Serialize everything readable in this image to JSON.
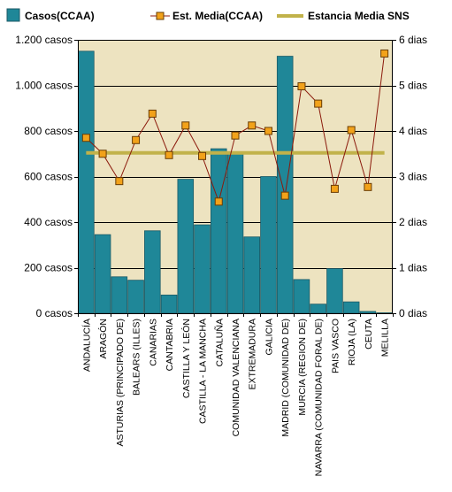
{
  "legend": {
    "casos_label": "Casos(CCAA)",
    "est_label": "Est. Media(CCAA)",
    "sns_label": "Estancia Media SNS"
  },
  "colors": {
    "plot_bg": "#ede3c0",
    "bar": "#1f8798",
    "bar_border": "#1b5a66",
    "line": "#8b1a0c",
    "marker_fill": "#f2a21a",
    "marker_border": "#6a3d05",
    "sns_line": "#c1b24a",
    "grid": "#000000"
  },
  "chart_data": {
    "type": "bar",
    "categories": [
      "ANDALUCÍA",
      "ARAGÓN",
      "ASTURIAS (PRINCIPADO DE)",
      "BALEARS (ILLES)",
      "CANARIAS",
      "CANTABRIA",
      "CASTILLA Y LEÓN",
      "CASTILLA - LA MANCHA",
      "CATALUÑA",
      "COMUNIDAD VALENCIANA",
      "EXTREMADURA",
      "GALICIA",
      "MADRID (COMUNIDAD DE)",
      "MURCIA (REGION DE)",
      "NAVARRA (COMUNIDAD FORAL DE)",
      "PAIS VASCO",
      "RIOJA (LA)",
      "CEUTA",
      "MELILLA"
    ],
    "series": [
      {
        "name": "Casos(CCAA)",
        "type": "bar",
        "axis": "left",
        "values": [
          1150,
          345,
          160,
          145,
          362,
          80,
          588,
          388,
          722,
          700,
          335,
          600,
          1128,
          148,
          40,
          196,
          50,
          8,
          2
        ]
      },
      {
        "name": "Est. Media(CCAA)",
        "type": "line",
        "axis": "right",
        "values": [
          3.85,
          3.5,
          2.9,
          3.8,
          4.38,
          3.47,
          4.12,
          3.45,
          2.45,
          3.9,
          4.12,
          4.0,
          2.58,
          4.98,
          4.6,
          2.73,
          4.02,
          2.77,
          5.7
        ]
      },
      {
        "name": "Estancia Media SNS",
        "type": "reference",
        "axis": "right",
        "value": 3.52
      }
    ],
    "y_left": {
      "ylim": [
        0,
        1200
      ],
      "ticks": [
        0,
        200,
        400,
        600,
        800,
        1000,
        1200
      ],
      "tick_labels": [
        "0 casos",
        "200 casos",
        "400 casos",
        "600 casos",
        "800 casos",
        "1.000 casos",
        "1.200 casos"
      ]
    },
    "y_right": {
      "ylim": [
        0,
        6
      ],
      "ticks": [
        0,
        1,
        2,
        3,
        4,
        5,
        6
      ],
      "tick_labels": [
        "0 dias",
        "1 dias",
        "2 dias",
        "3 dias",
        "4 dias",
        "5 dias",
        "6 dias"
      ]
    },
    "grid": true,
    "legend_position": "top"
  }
}
